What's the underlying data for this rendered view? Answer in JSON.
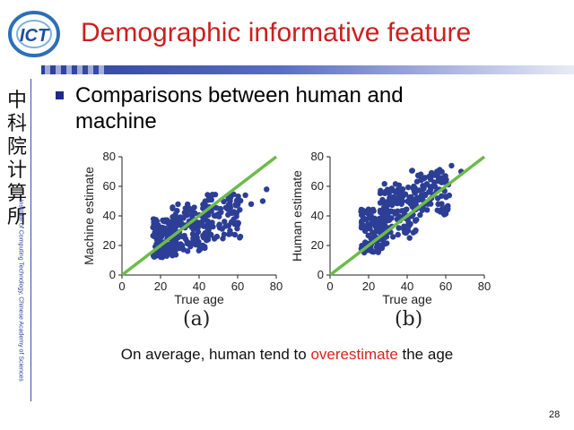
{
  "slide": {
    "logo_text": "ICT",
    "title": "Demographic informative feature",
    "bullet": "Comparisons between human and machine",
    "sidebar_chars": [
      "中",
      "科",
      "院",
      "计",
      "算",
      "所"
    ],
    "institute": "Institute of Computing Technology, Chinese Academy of Sciences",
    "summary_prefix": "On average, human tend to ",
    "summary_highlight": "overestimate",
    "summary_suffix": " the age",
    "page_number": "28",
    "colors": {
      "title": "#cc1f1f",
      "accent_blue": "#2b3f9e",
      "highlight": "#e02020",
      "points": "#2c3e95",
      "fit_line": "#6cbb4a"
    }
  },
  "chart_data": [
    {
      "type": "scatter",
      "caption": "(a)",
      "xlabel": "True age",
      "ylabel": "Machine estimate",
      "xlim": [
        0,
        80
      ],
      "ylim": [
        0,
        80
      ],
      "xticks": [
        0,
        20,
        40,
        60,
        80
      ],
      "yticks": [
        0,
        20,
        40,
        60,
        80
      ],
      "reference_line": [
        [
          0,
          0
        ],
        [
          80,
          80
        ]
      ],
      "clusters": [
        {
          "x": [
            16,
            28
          ],
          "y": [
            12,
            38
          ],
          "n": 130
        },
        {
          "x": [
            26,
            45
          ],
          "y": [
            16,
            48
          ],
          "n": 130
        },
        {
          "x": [
            42,
            62
          ],
          "y": [
            24,
            55
          ],
          "n": 90
        }
      ],
      "extra_points": [
        [
          73,
          50
        ],
        [
          67,
          48
        ],
        [
          75,
          58
        ],
        [
          64,
          54
        ],
        [
          56,
          30
        ],
        [
          60,
          34
        ]
      ]
    },
    {
      "type": "scatter",
      "caption": "(b)",
      "xlabel": "True age",
      "ylabel": "Human estimate",
      "xlim": [
        0,
        80
      ],
      "ylim": [
        0,
        80
      ],
      "xticks": [
        0,
        20,
        40,
        60,
        80
      ],
      "yticks": [
        0,
        20,
        40,
        60,
        80
      ],
      "reference_line": [
        [
          0,
          0
        ],
        [
          80,
          80
        ]
      ],
      "clusters": [
        {
          "x": [
            16,
            30
          ],
          "y": [
            15,
            45
          ],
          "n": 130
        },
        {
          "x": [
            26,
            45
          ],
          "y": [
            25,
            62
          ],
          "n": 130
        },
        {
          "x": [
            42,
            62
          ],
          "y": [
            40,
            72
          ],
          "n": 90
        }
      ],
      "extra_points": [
        [
          68,
          70
        ],
        [
          63,
          74
        ],
        [
          60,
          64
        ],
        [
          57,
          70
        ]
      ]
    }
  ]
}
